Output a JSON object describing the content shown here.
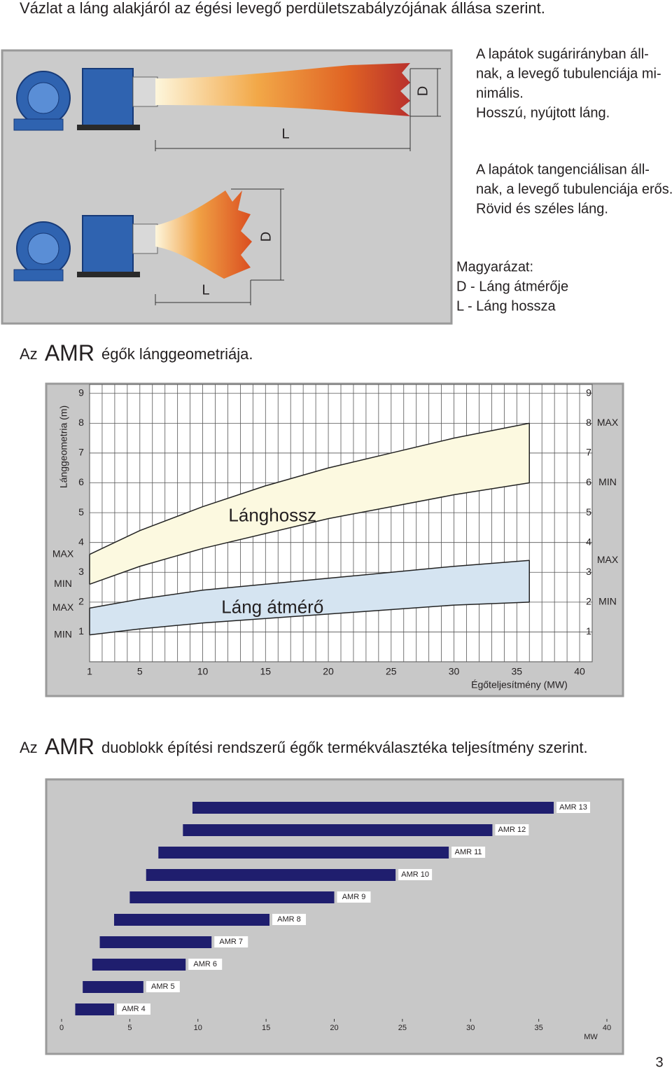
{
  "header": {
    "title": "Vázlat a láng alakjáról az égési levegő perdületszabályzójának állása szerint."
  },
  "diagram": {
    "long_flame": {
      "text_lines": [
        "A lapátok sugárirányban áll-",
        "nak, a levegő tubulenciája mi-",
        "nimális.",
        "Hosszú, nyújtott láng."
      ],
      "length_label": "L",
      "diameter_label": "D"
    },
    "short_flame": {
      "text_lines": [
        "A lapátok tangenciálisan áll-",
        "nak, a levegő tubulenciája erős.",
        "Rövid és széles láng."
      ],
      "length_label": "L",
      "diameter_label": "D"
    },
    "legend": [
      "Magyarázat:",
      "D - Láng átmérője",
      "L - Láng hossza"
    ]
  },
  "sections": [
    {
      "prefix": "Az",
      "brand": "AMR",
      "text": "égők lánggeometriája."
    },
    {
      "prefix": "Az",
      "brand": "AMR",
      "text": "duoblokk építési rendszerű égők termékválasztéka teljesítmény szerint."
    }
  ],
  "chart_data": [
    {
      "type": "band",
      "y_label": "Lánggeometria (m)",
      "x_label": "Égőteljesítmény (MW)",
      "x": [
        1,
        5,
        10,
        15,
        20,
        25,
        30,
        36
      ],
      "series": [
        {
          "name": "Lánghossz",
          "color": "#fcf9e0",
          "min": [
            2.6,
            3.2,
            3.8,
            4.3,
            4.8,
            5.2,
            5.6,
            6.0
          ],
          "max": [
            3.6,
            4.4,
            5.2,
            5.9,
            6.5,
            7.0,
            7.5,
            8.0
          ]
        },
        {
          "name": "Láng átmérő",
          "color": "#d5e4f1",
          "min": [
            0.9,
            1.1,
            1.3,
            1.45,
            1.6,
            1.75,
            1.9,
            2.0
          ],
          "max": [
            1.8,
            2.1,
            2.4,
            2.6,
            2.8,
            3.0,
            3.2,
            3.4
          ]
        }
      ],
      "max_label": "MAX",
      "min_label": "MIN",
      "xlim": [
        1,
        41
      ],
      "xticks": [
        1,
        5,
        10,
        15,
        20,
        25,
        30,
        35,
        40
      ],
      "x_gridlines": [
        1,
        2,
        3,
        4,
        5,
        6,
        7,
        8,
        9,
        10,
        11,
        12,
        13,
        14,
        15,
        16,
        17,
        18,
        19,
        20,
        21,
        22,
        23,
        24,
        25,
        26,
        27,
        28,
        29,
        30,
        31,
        32,
        33,
        34,
        35,
        36,
        37,
        38,
        39,
        40,
        41
      ],
      "ylim": [
        0,
        9.3
      ],
      "yticks": [
        1,
        2,
        3,
        4,
        5,
        6,
        7,
        8,
        9
      ],
      "grid": true
    },
    {
      "type": "range-bar",
      "x_label": "MW",
      "categories": [
        "AMR 13",
        "AMR 12",
        "AMR 11",
        "AMR 10",
        "AMR 9",
        "AMR 8",
        "AMR 7",
        "AMR 6",
        "AMR 5",
        "AMR 4"
      ],
      "low": [
        9.6,
        8.9,
        7.1,
        6.2,
        5.0,
        3.85,
        2.8,
        2.25,
        1.55,
        1.0
      ],
      "high": [
        36.1,
        31.6,
        28.4,
        24.5,
        20.0,
        15.25,
        11.0,
        9.1,
        6.0,
        3.85
      ],
      "color": "#1f1e6e",
      "xlim": [
        0,
        40
      ],
      "xticks": [
        0,
        5,
        10,
        15,
        20,
        25,
        30,
        35,
        40
      ]
    }
  ],
  "page_number": "3"
}
